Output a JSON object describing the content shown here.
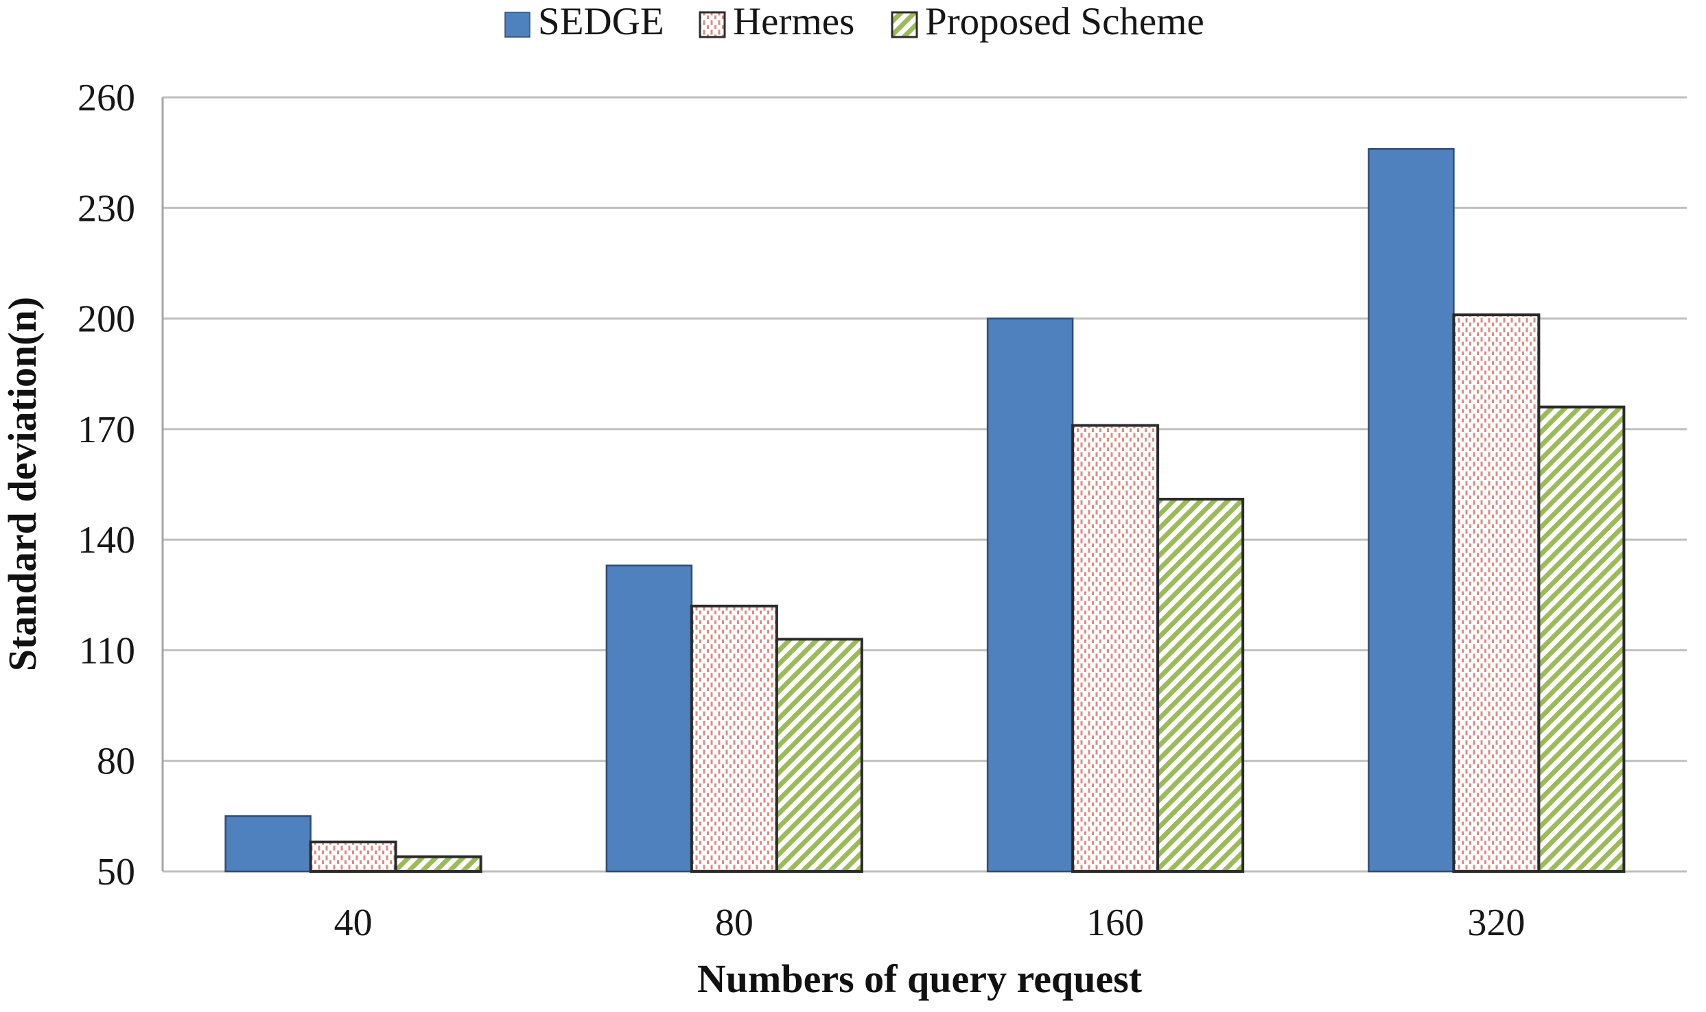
{
  "chart_data": {
    "type": "bar",
    "title": "",
    "categories": [
      "40",
      "80",
      "160",
      "320"
    ],
    "series": [
      {
        "name": "SEDGE",
        "values": [
          65,
          133,
          200,
          246
        ]
      },
      {
        "name": "Hermes",
        "values": [
          58,
          122,
          171,
          201
        ]
      },
      {
        "name": "Proposed Scheme",
        "values": [
          54,
          113,
          151,
          176
        ]
      }
    ],
    "xlabel": "Numbers of query request",
    "ylabel": "Standard deviation(n)",
    "ylim": [
      50,
      260
    ],
    "ytick_step": 30,
    "yticks": [
      50,
      80,
      110,
      140,
      170,
      200,
      230,
      260
    ],
    "grid": true,
    "legend_position": "top-center",
    "colors": {
      "sedge_fill": "#4E81BD",
      "sedge_border": "#2F4E75",
      "hermes_dot": "#D98C84",
      "hermes_bg": "#FFFFFF",
      "hermes_border": "#2B2B2B",
      "proposed_stripe": "#9BBB59",
      "proposed_bg": "#FFFFFF",
      "proposed_border": "#2B2B2B",
      "gridline": "#BFBFBF",
      "axis_line": "#A6A6A6",
      "text": "#161616",
      "background": "#FFFFFF"
    }
  }
}
